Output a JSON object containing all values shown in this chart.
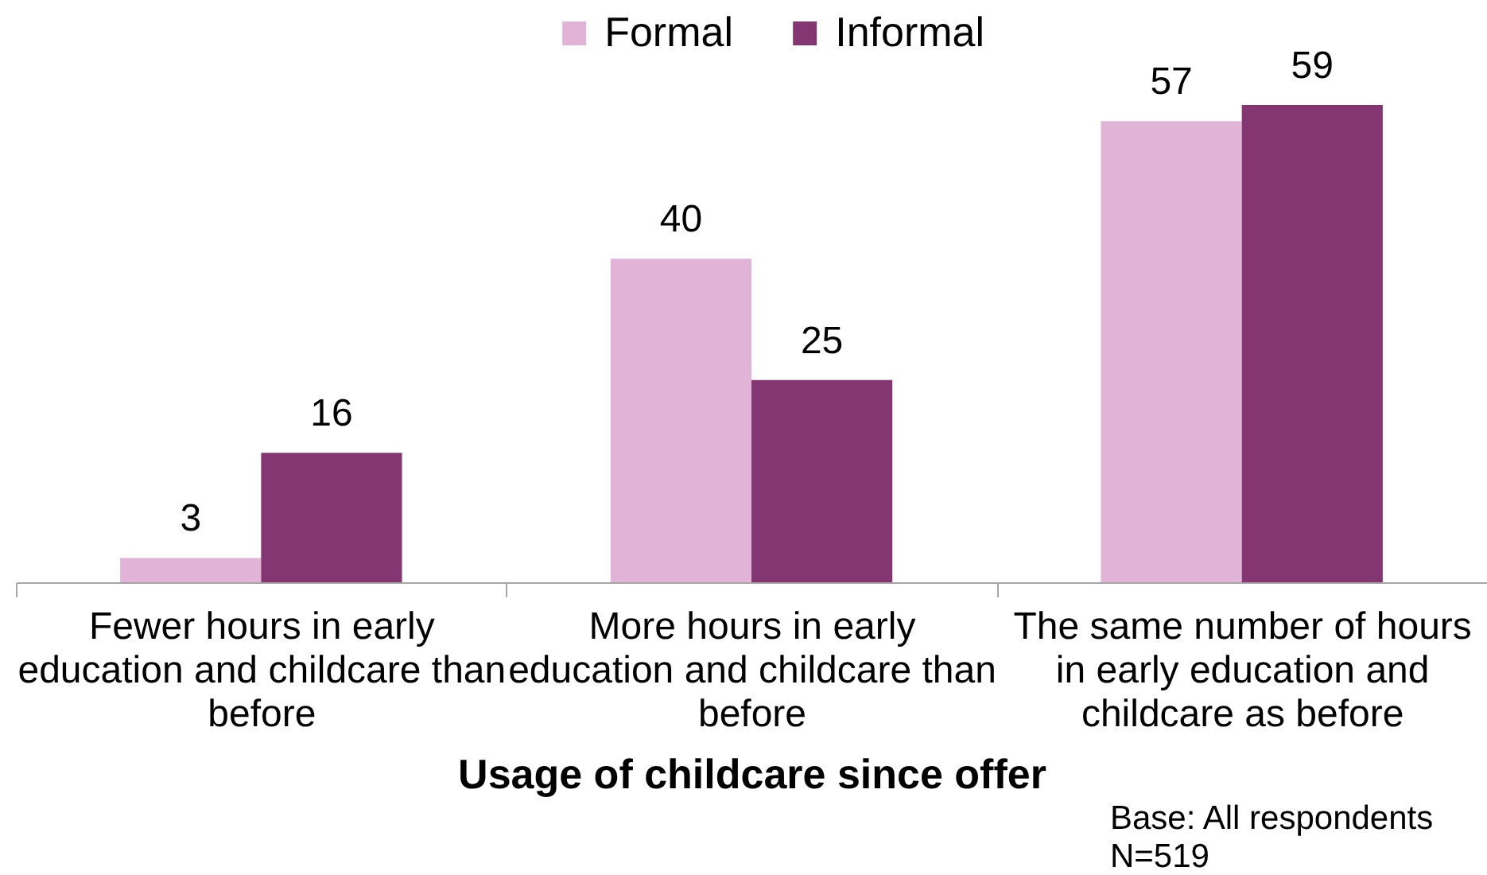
{
  "chart_data": {
    "type": "bar",
    "categories": [
      "Fewer hours in early\neducation and childcare than\nbefore",
      "More hours in early\neducation and childcare than\nbefore",
      "The same number of hours\nin early education and\nchildcare as before"
    ],
    "series": [
      {
        "name": "Formal",
        "color": "#e1b4d7",
        "values": [
          3,
          40,
          57
        ]
      },
      {
        "name": "Informal",
        "color": "#843672",
        "values": [
          16,
          25,
          59
        ]
      }
    ],
    "tick_labels": "x",
    "data_labels": true,
    "legend": "top",
    "xlabel": "Usage of childcare since offer",
    "annotations": [
      "Base: All respondents",
      "N=519"
    ]
  }
}
